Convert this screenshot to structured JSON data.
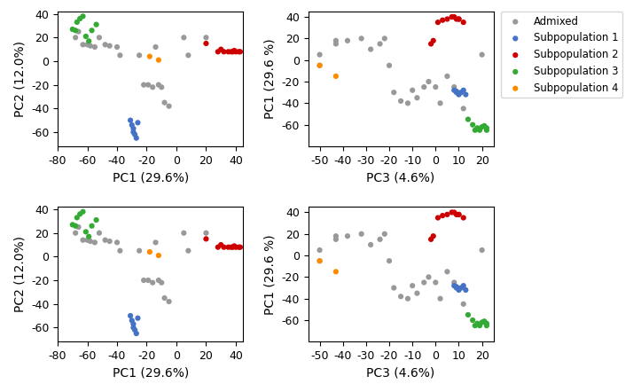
{
  "chart_data": [
    {
      "type": "scatter",
      "xlabel": "PC1 (29.6%)",
      "ylabel": "PC2 (12.0%)",
      "xlim": [
        -80,
        45
      ],
      "ylim": [
        -72,
        42
      ],
      "xticks": [
        -80,
        -60,
        -40,
        -20,
        0,
        20,
        40
      ],
      "yticks": [
        -60,
        -40,
        -20,
        0,
        20,
        40
      ],
      "series": [
        {
          "name": "Admixed",
          "color": "#999999",
          "x": [
            -68,
            -66,
            -63,
            -60,
            -58,
            -55,
            -52,
            -48,
            -45,
            -40,
            -38,
            -25,
            -22,
            -19,
            -16,
            -14,
            -12,
            -10,
            -8,
            -5,
            5,
            8,
            20
          ],
          "y": [
            20,
            25,
            14,
            14,
            13,
            12,
            20,
            14,
            13,
            12,
            5,
            5,
            -20,
            -20,
            -22,
            12,
            -20,
            -22,
            -35,
            -38,
            20,
            5,
            20
          ]
        },
        {
          "name": "Subpopulation 1",
          "color": "#4472C4",
          "x": [
            -31,
            -30,
            -29,
            -29,
            -28,
            -27,
            -26
          ],
          "y": [
            -50,
            -54,
            -57,
            -60,
            -62,
            -65,
            -52
          ]
        },
        {
          "name": "Subpopulation 2",
          "color": "#CC0000",
          "x": [
            20,
            28,
            30,
            32,
            35,
            37,
            38,
            39,
            40,
            42,
            43
          ],
          "y": [
            15,
            8,
            10,
            8,
            8,
            8,
            8,
            9,
            8,
            8,
            8
          ]
        },
        {
          "name": "Subpopulation 3",
          "color": "#33AA33",
          "x": [
            -70,
            -68,
            -67,
            -65,
            -63,
            -61,
            -59,
            -57,
            -54
          ],
          "y": [
            27,
            26,
            33,
            36,
            38,
            21,
            17,
            26,
            31
          ]
        },
        {
          "name": "Subpopulation 4",
          "color": "#FF8C00",
          "x": [
            -18,
            -12
          ],
          "y": [
            4,
            1
          ]
        }
      ]
    },
    {
      "type": "scatter",
      "xlabel": "PC3 (4.6%)",
      "ylabel": "PC1 (29.6 %)",
      "xlim": [
        -55,
        25
      ],
      "ylim": [
        -80,
        45
      ],
      "xticks": [
        -50,
        -40,
        -30,
        -20,
        -10,
        0,
        10,
        20
      ],
      "yticks": [
        -60,
        -40,
        -20,
        0,
        20,
        40
      ],
      "legend": "upper left",
      "series": [
        {
          "name": "Admixed",
          "color": "#999999",
          "x": [
            -50,
            -50,
            -43,
            -43,
            -38,
            -32,
            -28,
            -24,
            -22,
            -20,
            -18,
            -15,
            -12,
            -10,
            -8,
            -5,
            -3,
            0,
            2,
            5,
            8,
            12,
            20
          ],
          "y": [
            5,
            -5,
            15,
            18,
            18,
            20,
            10,
            15,
            20,
            -5,
            -30,
            -38,
            -40,
            -28,
            -35,
            -25,
            -20,
            -25,
            -40,
            -15,
            -25,
            -45,
            5
          ]
        },
        {
          "name": "Subpopulation 1",
          "color": "#4472C4",
          "x": [
            8,
            9,
            10,
            11,
            12,
            13,
            9
          ],
          "y": [
            -28,
            -30,
            -32,
            -30,
            -28,
            -32,
            -29
          ]
        },
        {
          "name": "Subpopulation 2",
          "color": "#CC0000",
          "x": [
            -1,
            1,
            3,
            5,
            7,
            8,
            9,
            10,
            10,
            12,
            -2
          ],
          "y": [
            18,
            35,
            37,
            38,
            40,
            40,
            38,
            38,
            38,
            35,
            15
          ]
        },
        {
          "name": "Subpopulation 3",
          "color": "#33AA33",
          "x": [
            14,
            16,
            17,
            18,
            19,
            20,
            21,
            22,
            22
          ],
          "y": [
            -55,
            -60,
            -65,
            -63,
            -65,
            -62,
            -61,
            -65,
            -63
          ]
        },
        {
          "name": "Subpopulation 4",
          "color": "#FF8C00",
          "x": [
            -50,
            -43
          ],
          "y": [
            -5,
            -15
          ]
        }
      ]
    },
    {
      "type": "scatter",
      "xlabel": "PC1 (29.6%)",
      "ylabel": "PC2 (12.0%)",
      "xlim": [
        -80,
        45
      ],
      "ylim": [
        -72,
        42
      ],
      "xticks": [
        -80,
        -60,
        -40,
        -20,
        0,
        20,
        40
      ],
      "yticks": [
        -60,
        -40,
        -20,
        0,
        20,
        40
      ],
      "series": [
        {
          "name": "Admixed",
          "color": "#999999",
          "x": [
            -68,
            -66,
            -63,
            -60,
            -58,
            -55,
            -52,
            -48,
            -45,
            -40,
            -38,
            -25,
            -22,
            -19,
            -16,
            -14,
            -12,
            -10,
            -8,
            -5,
            5,
            8,
            20
          ],
          "y": [
            20,
            25,
            14,
            14,
            13,
            12,
            20,
            14,
            13,
            12,
            5,
            5,
            -20,
            -20,
            -22,
            12,
            -20,
            -22,
            -35,
            -38,
            20,
            5,
            20
          ]
        },
        {
          "name": "Subpopulation 1",
          "color": "#4472C4",
          "x": [
            -31,
            -30,
            -29,
            -29,
            -28,
            -27,
            -26
          ],
          "y": [
            -50,
            -54,
            -57,
            -60,
            -62,
            -65,
            -52
          ]
        },
        {
          "name": "Subpopulation 2",
          "color": "#CC0000",
          "x": [
            20,
            28,
            30,
            32,
            35,
            37,
            38,
            39,
            40,
            42,
            43
          ],
          "y": [
            15,
            8,
            10,
            8,
            8,
            8,
            8,
            9,
            8,
            8,
            8
          ]
        },
        {
          "name": "Subpopulation 3",
          "color": "#33AA33",
          "x": [
            -70,
            -68,
            -67,
            -65,
            -63,
            -61,
            -59,
            -57,
            -54
          ],
          "y": [
            27,
            26,
            33,
            36,
            38,
            21,
            17,
            26,
            31
          ]
        },
        {
          "name": "Subpopulation 4",
          "color": "#FF8C00",
          "x": [
            -18,
            -12
          ],
          "y": [
            4,
            1
          ]
        }
      ]
    },
    {
      "type": "scatter",
      "xlabel": "PC3 (4.6%)",
      "ylabel": "PC1 (29.6 %)",
      "xlim": [
        -55,
        25
      ],
      "ylim": [
        -80,
        45
      ],
      "xticks": [
        -50,
        -40,
        -30,
        -20,
        -10,
        0,
        10,
        20
      ],
      "yticks": [
        -60,
        -40,
        -20,
        0,
        20,
        40
      ],
      "series": [
        {
          "name": "Admixed",
          "color": "#999999",
          "x": [
            -50,
            -50,
            -43,
            -43,
            -38,
            -32,
            -28,
            -24,
            -22,
            -20,
            -18,
            -15,
            -12,
            -10,
            -8,
            -5,
            -3,
            0,
            2,
            5,
            8,
            12,
            20
          ],
          "y": [
            5,
            -5,
            15,
            18,
            18,
            20,
            10,
            15,
            20,
            -5,
            -30,
            -38,
            -40,
            -28,
            -35,
            -25,
            -20,
            -25,
            -40,
            -15,
            -25,
            -45,
            5
          ]
        },
        {
          "name": "Subpopulation 1",
          "color": "#4472C4",
          "x": [
            8,
            9,
            10,
            11,
            12,
            13,
            9
          ],
          "y": [
            -28,
            -30,
            -32,
            -30,
            -28,
            -32,
            -29
          ]
        },
        {
          "name": "Subpopulation 2",
          "color": "#CC0000",
          "x": [
            -1,
            1,
            3,
            5,
            7,
            8,
            9,
            10,
            10,
            12,
            -2
          ],
          "y": [
            18,
            35,
            37,
            38,
            40,
            40,
            38,
            38,
            38,
            35,
            15
          ]
        },
        {
          "name": "Subpopulation 3",
          "color": "#33AA33",
          "x": [
            14,
            16,
            17,
            18,
            19,
            20,
            21,
            22,
            22
          ],
          "y": [
            -55,
            -60,
            -65,
            -63,
            -65,
            -62,
            -61,
            -65,
            -63
          ]
        },
        {
          "name": "Subpopulation 4",
          "color": "#FF8C00",
          "x": [
            -50,
            -43
          ],
          "y": [
            -5,
            -15
          ]
        }
      ]
    }
  ]
}
